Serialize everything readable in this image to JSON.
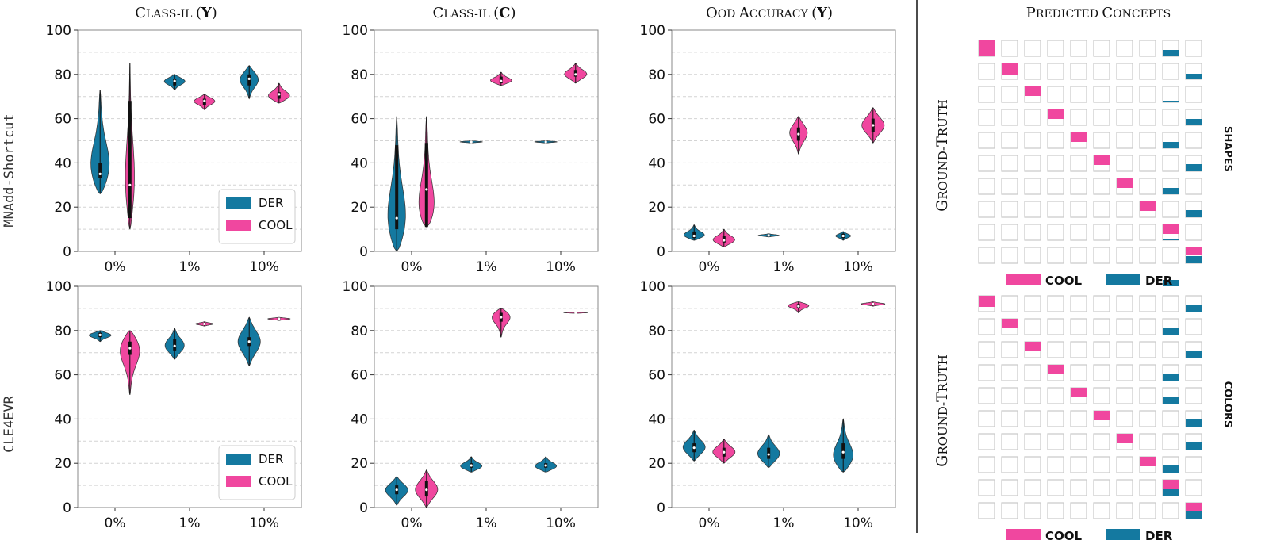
{
  "colors": {
    "der": "#1479a0",
    "cool": "#f0479f",
    "grid": "#d4d4d4",
    "axis": "#888888",
    "cell": "#c8c8c8"
  },
  "figure": {
    "col_titles": [
      "Class-IL (Y)",
      "Class-IL (C)",
      "OOD Accuracy (Y)"
    ],
    "right_title": "Predicted Concepts",
    "row_labels": [
      "MNAdd-Shortcut",
      "CLE4EVR"
    ],
    "legend": [
      "DER",
      "COOL"
    ]
  },
  "chart_data": [
    {
      "type": "violin",
      "id": "r0c0",
      "title": "Class-IL (Y)",
      "categories": [
        "0%",
        "1%",
        "10%"
      ],
      "ylim": [
        0,
        100
      ],
      "yticks": [
        0,
        20,
        40,
        60,
        80,
        100
      ],
      "violins": [
        {
          "series": "DER",
          "cat": 0,
          "min": 26,
          "max": 73,
          "median": 35,
          "q1": 33,
          "q3": 40,
          "mode": 35,
          "w": 0.3
        },
        {
          "series": "COOL",
          "cat": 0,
          "min": 10,
          "max": 85,
          "median": 30,
          "q1": 15,
          "q3": 68,
          "mode": 28,
          "w": 0.14
        },
        {
          "series": "DER",
          "cat": 1,
          "min": 73,
          "max": 80,
          "median": 77,
          "q1": 75,
          "q3": 78,
          "mode": 77,
          "w": 0.28
        },
        {
          "series": "COOL",
          "cat": 1,
          "min": 64,
          "max": 71,
          "median": 68,
          "q1": 66,
          "q3": 69,
          "mode": 68,
          "w": 0.28
        },
        {
          "series": "DER",
          "cat": 2,
          "min": 69,
          "max": 84,
          "median": 78,
          "q1": 75,
          "q3": 80,
          "mode": 78,
          "w": 0.25
        },
        {
          "series": "COOL",
          "cat": 2,
          "min": 67,
          "max": 76,
          "median": 71,
          "q1": 69,
          "q3": 72,
          "mode": 70,
          "w": 0.3
        }
      ],
      "legend": "lower-right"
    },
    {
      "type": "violin",
      "id": "r0c1",
      "title": "Class-IL (C)",
      "categories": [
        "0%",
        "1%",
        "10%"
      ],
      "ylim": [
        0,
        100
      ],
      "yticks": [
        0,
        20,
        40,
        60,
        80,
        100
      ],
      "violins": [
        {
          "series": "DER",
          "cat": 0,
          "min": 0,
          "max": 61,
          "median": 15,
          "q1": 10,
          "q3": 48,
          "mode": 10,
          "w": 0.3
        },
        {
          "series": "COOL",
          "cat": 0,
          "min": 11,
          "max": 61,
          "median": 28,
          "q1": 11,
          "q3": 49,
          "mode": 15,
          "w": 0.3
        },
        {
          "series": "DER",
          "cat": 1,
          "min": 49,
          "max": 50,
          "median": 49.5,
          "q1": 49.4,
          "q3": 49.6,
          "mode": 49.5,
          "w": 0.3
        },
        {
          "series": "COOL",
          "cat": 1,
          "min": 75,
          "max": 81,
          "median": 77,
          "q1": 76,
          "q3": 79,
          "mode": 77,
          "w": 0.3
        },
        {
          "series": "DER",
          "cat": 2,
          "min": 49,
          "max": 50,
          "median": 49.5,
          "q1": 49.4,
          "q3": 49.6,
          "mode": 49.5,
          "w": 0.3
        },
        {
          "series": "COOL",
          "cat": 2,
          "min": 76,
          "max": 85,
          "median": 80,
          "q1": 79,
          "q3": 82,
          "mode": 80,
          "w": 0.3
        }
      ],
      "legend": "none"
    },
    {
      "type": "violin",
      "id": "r0c2",
      "title": "OOD Accuracy (Y)",
      "categories": [
        "0%",
        "1%",
        "10%"
      ],
      "ylim": [
        0,
        100
      ],
      "yticks": [
        0,
        20,
        40,
        60,
        80,
        100
      ],
      "violins": [
        {
          "series": "DER",
          "cat": 0,
          "min": 5,
          "max": 12,
          "median": 7,
          "q1": 6,
          "q3": 9,
          "mode": 7,
          "w": 0.3
        },
        {
          "series": "COOL",
          "cat": 0,
          "min": 2,
          "max": 10,
          "median": 5,
          "q1": 4,
          "q3": 7,
          "mode": 5,
          "w": 0.3
        },
        {
          "series": "DER",
          "cat": 1,
          "min": 6.5,
          "max": 8,
          "median": 7.2,
          "q1": 7,
          "q3": 7.5,
          "mode": 7.2,
          "w": 0.28
        },
        {
          "series": "COOL",
          "cat": 1,
          "min": 44,
          "max": 61,
          "median": 53,
          "q1": 50,
          "q3": 56,
          "mode": 54,
          "w": 0.24
        },
        {
          "series": "DER",
          "cat": 2,
          "min": 5,
          "max": 9,
          "median": 7,
          "q1": 6,
          "q3": 8,
          "mode": 7,
          "w": 0.2
        },
        {
          "series": "COOL",
          "cat": 2,
          "min": 49,
          "max": 65,
          "median": 57,
          "q1": 54,
          "q3": 60,
          "mode": 57,
          "w": 0.3
        }
      ],
      "legend": "none"
    },
    {
      "type": "violin",
      "id": "r1c0",
      "title": "",
      "categories": [
        "0%",
        "1%",
        "10%"
      ],
      "ylim": [
        0,
        100
      ],
      "yticks": [
        0,
        20,
        40,
        60,
        80,
        100
      ],
      "violins": [
        {
          "series": "DER",
          "cat": 0,
          "min": 75,
          "max": 80,
          "median": 78,
          "q1": 77,
          "q3": 79,
          "mode": 78,
          "w": 0.3
        },
        {
          "series": "COOL",
          "cat": 0,
          "min": 51,
          "max": 80,
          "median": 72,
          "q1": 69,
          "q3": 75,
          "mode": 73,
          "w": 0.3
        },
        {
          "series": "DER",
          "cat": 1,
          "min": 67,
          "max": 81,
          "median": 73,
          "q1": 71,
          "q3": 76,
          "mode": 73,
          "w": 0.26
        },
        {
          "series": "COOL",
          "cat": 1,
          "min": 82,
          "max": 84,
          "median": 83,
          "q1": 82.7,
          "q3": 83.4,
          "mode": 83,
          "w": 0.24
        },
        {
          "series": "DER",
          "cat": 2,
          "min": 64,
          "max": 86,
          "median": 75,
          "q1": 73,
          "q3": 77,
          "mode": 75,
          "w": 0.3
        },
        {
          "series": "COOL",
          "cat": 2,
          "min": 84.5,
          "max": 86,
          "median": 85.3,
          "q1": 85,
          "q3": 85.6,
          "mode": 85.3,
          "w": 0.3
        }
      ],
      "legend": "lower-right"
    },
    {
      "type": "violin",
      "id": "r1c1",
      "title": "",
      "categories": [
        "0%",
        "1%",
        "10%"
      ],
      "ylim": [
        0,
        100
      ],
      "yticks": [
        0,
        20,
        40,
        60,
        80,
        100
      ],
      "violins": [
        {
          "series": "DER",
          "cat": 0,
          "min": 1,
          "max": 14,
          "median": 8,
          "q1": 6,
          "q3": 10,
          "mode": 8,
          "w": 0.3
        },
        {
          "series": "COOL",
          "cat": 0,
          "min": 0,
          "max": 17,
          "median": 8,
          "q1": 5,
          "q3": 12,
          "mode": 8,
          "w": 0.3
        },
        {
          "series": "DER",
          "cat": 1,
          "min": 16,
          "max": 23,
          "median": 19,
          "q1": 18,
          "q3": 20,
          "mode": 18.5,
          "w": 0.3
        },
        {
          "series": "COOL",
          "cat": 1,
          "min": 77,
          "max": 90,
          "median": 86,
          "q1": 84,
          "q3": 88,
          "mode": 87,
          "w": 0.28
        },
        {
          "series": "DER",
          "cat": 2,
          "min": 16,
          "max": 23,
          "median": 19,
          "q1": 18,
          "q3": 20,
          "mode": 18.5,
          "w": 0.3
        },
        {
          "series": "COOL",
          "cat": 2,
          "min": 87.8,
          "max": 88.4,
          "median": 88.1,
          "q1": 88,
          "q3": 88.2,
          "mode": 88.1,
          "w": 0.32
        }
      ],
      "legend": "none"
    },
    {
      "type": "violin",
      "id": "r1c2",
      "title": "",
      "categories": [
        "0%",
        "1%",
        "10%"
      ],
      "ylim": [
        0,
        100
      ],
      "yticks": [
        0,
        20,
        40,
        60,
        80,
        100
      ],
      "violins": [
        {
          "series": "DER",
          "cat": 0,
          "min": 21,
          "max": 35,
          "median": 27,
          "q1": 25,
          "q3": 29,
          "mode": 27,
          "w": 0.3
        },
        {
          "series": "COOL",
          "cat": 0,
          "min": 20,
          "max": 31,
          "median": 25,
          "q1": 23,
          "q3": 27,
          "mode": 25,
          "w": 0.3
        },
        {
          "series": "DER",
          "cat": 1,
          "min": 18,
          "max": 33,
          "median": 24,
          "q1": 22,
          "q3": 27,
          "mode": 24,
          "w": 0.3
        },
        {
          "series": "COOL",
          "cat": 1,
          "min": 88,
          "max": 93,
          "median": 91,
          "q1": 90,
          "q3": 92,
          "mode": 91.5,
          "w": 0.3
        },
        {
          "series": "DER",
          "cat": 2,
          "min": 16,
          "max": 40,
          "median": 25,
          "q1": 22,
          "q3": 29,
          "mode": 22,
          "w": 0.3
        },
        {
          "series": "COOL",
          "cat": 2,
          "min": 91,
          "max": 93,
          "median": 92,
          "q1": 91.7,
          "q3": 92.3,
          "mode": 92,
          "w": 0.32
        }
      ],
      "legend": "none"
    },
    {
      "type": "heatmap",
      "id": "conf-shapes",
      "ylabel": "Ground-Truth",
      "side_label": "SHAPES",
      "legend": [
        "COOL",
        "DER"
      ],
      "size": 10,
      "cool_diag": [
        1,
        0.7,
        0.6,
        0.6,
        0.6,
        0.6,
        0.6,
        0.6,
        0.6,
        0.5
      ],
      "der": [
        [
          8,
          0.4
        ],
        [
          9,
          0.35
        ],
        [
          8,
          0.1
        ],
        [
          9,
          0.4
        ],
        [
          8,
          0.4
        ],
        [
          9,
          0.45
        ],
        [
          8,
          0.4
        ],
        [
          9,
          0.45
        ],
        [
          8,
          0.05
        ],
        [
          9,
          0.45
        ],
        [
          8,
          0.4
        ],
        [
          9,
          0.35
        ],
        [
          8,
          0.05
        ],
        [
          9,
          0.4
        ],
        [
          8,
          0.4
        ],
        [
          9,
          0.1
        ],
        [
          8,
          0.4
        ],
        [
          8,
          0.4
        ],
        [
          9,
          0.4
        ]
      ]
    },
    {
      "type": "heatmap",
      "id": "conf-colors",
      "ylabel": "Ground-Truth",
      "side_label": "COLORS",
      "legend": [
        "COOL",
        "DER"
      ],
      "size": 10,
      "cool_diag": [
        0.7,
        0.6,
        0.6,
        0.6,
        0.6,
        0.6,
        0.6,
        0.6,
        0.6,
        0.5
      ],
      "der": [
        [
          9,
          0.45
        ],
        [
          8,
          0.45
        ],
        [
          9,
          0.45
        ],
        [
          8,
          0.45
        ],
        [
          8,
          0.45
        ],
        [
          9,
          0.45
        ],
        [
          9,
          0.45
        ],
        [
          8,
          0.45
        ],
        [
          8,
          0.4
        ],
        [
          9,
          0.45
        ]
      ]
    }
  ]
}
